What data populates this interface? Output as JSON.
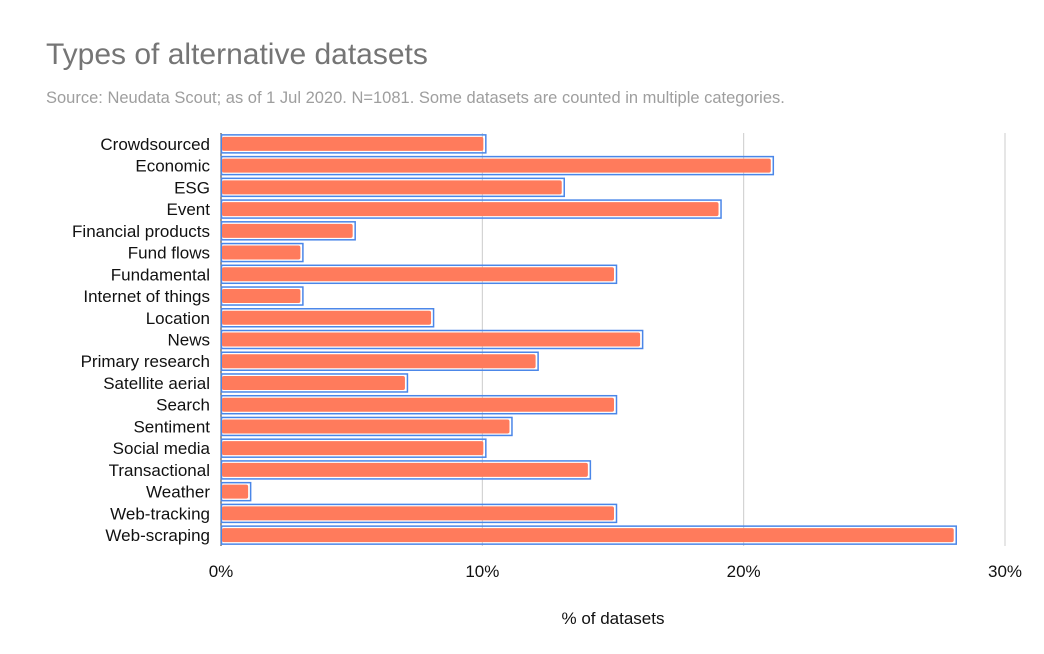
{
  "chart_data": {
    "type": "bar",
    "orientation": "horizontal",
    "title": "Types of alternative datasets",
    "subtitle": "Source: Neudata Scout; as of 1 Jul 2020. N=1081. Some datasets are counted in multiple categories.",
    "xlabel": "% of datasets",
    "ylabel": "",
    "categories": [
      "Crowdsourced",
      "Economic",
      "ESG",
      "Event",
      "Financial products",
      "Fund flows",
      "Fundamental",
      "Internet of things",
      "Location",
      "News",
      "Primary research",
      "Satellite aerial",
      "Search",
      "Sentiment",
      "Social media",
      "Transactional",
      "Weather",
      "Web-tracking",
      "Web-scraping"
    ],
    "values": [
      10,
      21,
      13,
      19,
      5,
      3,
      15,
      3,
      8,
      16,
      12,
      7,
      15,
      11,
      10,
      14,
      1,
      15,
      28
    ],
    "xlim": [
      0,
      30
    ],
    "xticks": [
      0,
      10,
      20,
      30
    ],
    "xtick_labels": [
      "0%",
      "10%",
      "20%",
      "30%"
    ],
    "grid": true,
    "colors": {
      "bar": "#ff7b5c",
      "bar_outline": "#4a86e8",
      "grid": "#cccccc",
      "title": "#757575",
      "subtitle": "#9e9e9e"
    }
  }
}
